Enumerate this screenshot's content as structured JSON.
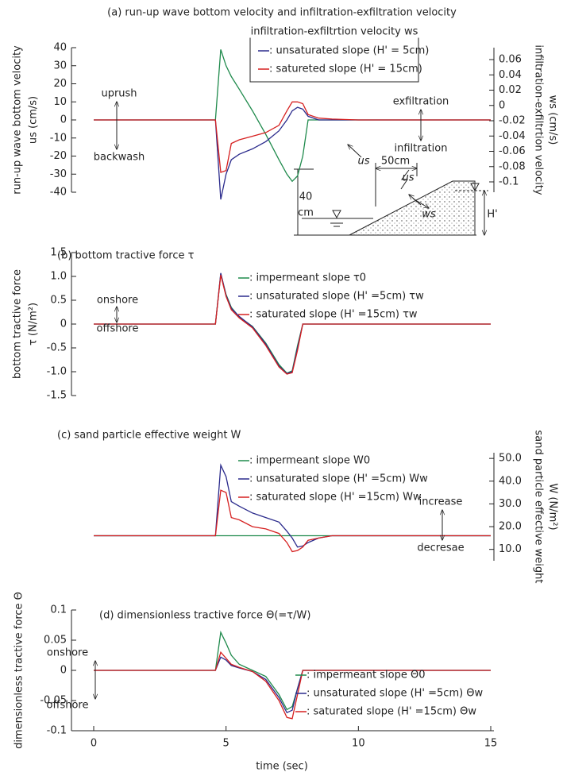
{
  "chart_data": [
    {
      "type": "line",
      "title": "(a) run-up wave bottom velocity and infiltration-exfiltration velocity",
      "ylabel": [
        "run-up wave bottom velocity",
        "us (cm/s)"
      ],
      "y2label": [
        "infiltration-exfiltrtion velocity",
        "ws (cm/s)"
      ],
      "legend_title": "infiltration-exfiltrtion velocity  ws",
      "xlim": [
        0,
        15
      ],
      "ylim": [
        -40,
        40
      ],
      "yticks": [
        -40,
        -30,
        -20,
        -10,
        0,
        10,
        20,
        30,
        40
      ],
      "y2lim": [
        -0.1135,
        0.0756
      ],
      "y2ticks": [
        -0.1,
        -0.08,
        -0.06,
        -0.04,
        -0.02,
        0,
        0.02,
        0.04,
        0.06
      ],
      "x": [
        0,
        4.6,
        4.8,
        5.0,
        5.2,
        5.5,
        6.0,
        6.5,
        7.0,
        7.3,
        7.5,
        7.7,
        7.9,
        8.1,
        8.5,
        9.0,
        10,
        15
      ],
      "series": [
        {
          "color": "#1f8a4c",
          "values": [
            0,
            0,
            39,
            30,
            24,
            17,
            5,
            -8,
            -22,
            -30,
            -34,
            -31,
            -20,
            0,
            0,
            0,
            0,
            0
          ]
        },
        {
          "name": ":  unsaturated slope (H' = 5cm)",
          "color": "#2b2b8c",
          "values": [
            0,
            0,
            -44,
            -30,
            -22,
            -19,
            -16,
            -12,
            -6,
            0,
            5,
            7,
            6,
            2,
            0,
            0,
            0,
            0
          ]
        },
        {
          "name": ":  satureted slope (H' = 15cm)",
          "color": "#d62020",
          "values": [
            0,
            0,
            -29,
            -28,
            -13,
            -11,
            -9,
            -7,
            -3,
            5,
            10,
            10,
            9,
            3,
            1,
            0.5,
            0,
            0
          ]
        }
      ],
      "annotations": [
        "uprush",
        "backwash",
        "exfiltration",
        "infiltration",
        "us",
        "40",
        "cm",
        "50cm",
        "us",
        "ws",
        "H'"
      ]
    },
    {
      "type": "line",
      "title": "(b) bottom tractive force  τ",
      "ylabel": [
        "bottom tractive force",
        "τ (N/m²)"
      ],
      "xlim": [
        0,
        15
      ],
      "ylim": [
        -1.5,
        1.5
      ],
      "yticks": [
        -1.5,
        {
          "value": -1,
          "label": "-1.0"
        },
        -0.5,
        0,
        0.5,
        {
          "value": 1,
          "label": "1.0"
        },
        1.5
      ],
      "x": [
        0,
        4.6,
        4.8,
        5.0,
        5.2,
        5.5,
        6.0,
        6.5,
        7.0,
        7.3,
        7.5,
        7.7,
        7.9,
        8.1,
        8.5,
        9.0,
        10,
        15
      ],
      "series": [
        {
          "name": ":  impermeant slope    τ0",
          "color": "#1f8a4c",
          "values": [
            0,
            0,
            1.05,
            0.62,
            0.35,
            0.15,
            -0.05,
            -0.4,
            -0.85,
            -1.03,
            -0.98,
            -0.45,
            0,
            0,
            0,
            0,
            0,
            0
          ]
        },
        {
          "name": ":  unsaturated slope (H' =5cm)  τw",
          "color": "#2b2b8c",
          "values": [
            0,
            0,
            1.07,
            0.6,
            0.33,
            0.16,
            -0.06,
            -0.42,
            -0.88,
            -1.04,
            -1.0,
            -0.5,
            0,
            0,
            0,
            0,
            0,
            0
          ]
        },
        {
          "name": ":  saturated slope (H' =15cm)  τw",
          "color": "#d62020",
          "values": [
            0,
            0,
            1.03,
            0.58,
            0.3,
            0.13,
            -0.08,
            -0.45,
            -0.9,
            -1.05,
            -1.02,
            -0.55,
            0,
            0,
            0,
            0,
            0,
            0
          ]
        }
      ],
      "annotations": [
        "onshore",
        "offshore"
      ]
    },
    {
      "type": "line",
      "title": "(c) sand particle effective weight  W",
      "y2label": [
        "sand particle effective weight",
        "W (N/m²)"
      ],
      "xlim": [
        0,
        15
      ],
      "y2lim": [
        5,
        52.5
      ],
      "y2ticks": [
        {
          "value": 10,
          "label": "10.0"
        },
        {
          "value": 20,
          "label": "20.0"
        },
        {
          "value": 30,
          "label": "30.0"
        },
        {
          "value": 40,
          "label": "40.0"
        },
        {
          "value": 50,
          "label": "50.0"
        }
      ],
      "x": [
        0,
        4.6,
        4.8,
        5.0,
        5.2,
        5.5,
        6.0,
        6.5,
        7.0,
        7.3,
        7.5,
        7.7,
        7.9,
        8.1,
        8.5,
        9.0,
        10,
        15
      ],
      "series": [
        {
          "name": ":  impermeant slope   W0",
          "color": "#1f8a4c",
          "axis": "y2",
          "values": [
            16,
            16,
            16,
            16,
            16,
            16,
            16,
            16,
            16,
            16,
            16,
            16,
            16,
            16,
            16,
            16,
            16,
            16
          ]
        },
        {
          "name": ":  unsaturated slope (H' =5cm)  Ww",
          "color": "#2b2b8c",
          "axis": "y2",
          "values": [
            16,
            16,
            47,
            42,
            31,
            29,
            26,
            24,
            22,
            18,
            15,
            11,
            11.5,
            13,
            15,
            16,
            16,
            16
          ]
        },
        {
          "name": ":  saturated slope (H' =15cm)  Ww",
          "color": "#d62020",
          "axis": "y2",
          "values": [
            16,
            16,
            36,
            35,
            24,
            23,
            20,
            19,
            17,
            13,
            9,
            9.5,
            11,
            14,
            15,
            16,
            16,
            16
          ]
        }
      ],
      "annotations": [
        "increase",
        "decresae"
      ]
    },
    {
      "type": "line",
      "title": "(d) dimensionless tractive force  Θ(=τ/W)",
      "ylabel": [
        "dimensionless tractive force  Θ"
      ],
      "xlabel": "time  (sec)",
      "xlim": [
        0,
        15
      ],
      "xticks": [
        0,
        5,
        10,
        15
      ],
      "ylim": [
        -0.1,
        0.1
      ],
      "yticks": [
        -0.1,
        -0.05,
        0,
        0.05,
        0.1
      ],
      "x": [
        0,
        4.6,
        4.8,
        5.0,
        5.2,
        5.5,
        6.0,
        6.5,
        7.0,
        7.3,
        7.5,
        7.7,
        7.9,
        8.1,
        8.5,
        9.0,
        10,
        15
      ],
      "series": [
        {
          "name": ":  impermeant slope  Θ0",
          "color": "#1f8a4c",
          "values": [
            0,
            0,
            0.063,
            0.045,
            0.025,
            0.01,
            0,
            -0.01,
            -0.04,
            -0.065,
            -0.06,
            -0.03,
            0,
            0,
            0,
            0,
            0,
            0
          ]
        },
        {
          "name": ":  unsaturated slope (H' =5cm)  Θw",
          "color": "#2b2b8c",
          "values": [
            0,
            0,
            0.022,
            0.017,
            0.008,
            0.004,
            -0.002,
            -0.015,
            -0.045,
            -0.07,
            -0.066,
            -0.03,
            0,
            0,
            0,
            0,
            0,
            0
          ]
        },
        {
          "name": ":  saturated slope (H' =15cm)  Θw",
          "color": "#d62020",
          "values": [
            0,
            0,
            0.03,
            0.02,
            0.01,
            0.005,
            -0.002,
            -0.018,
            -0.05,
            -0.078,
            -0.08,
            -0.04,
            0,
            0,
            0,
            0,
            0,
            0
          ]
        }
      ],
      "annotations": [
        "onshore",
        "offshore"
      ]
    }
  ]
}
